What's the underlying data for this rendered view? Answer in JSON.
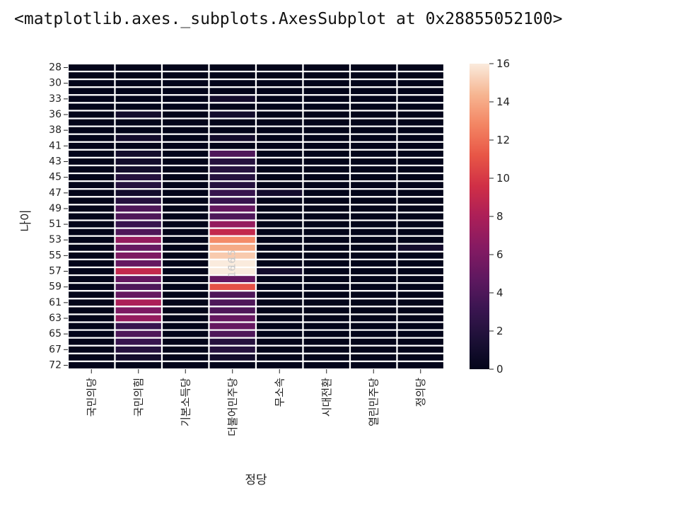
{
  "output_repr": "<matplotlib.axes._subplots.AxesSubplot at 0x28855052100>",
  "chart_data": {
    "type": "heatmap",
    "xlabel": "정당",
    "ylabel": "나이",
    "columns": [
      "국민의당",
      "국민의힘",
      "기본소득당",
      "더불어민주당",
      "무소속",
      "시대전환",
      "열린민주당",
      "정의당"
    ],
    "row_ticks": [
      "28",
      "30",
      "33",
      "36",
      "38",
      "41",
      "43",
      "45",
      "47",
      "49",
      "51",
      "53",
      "55",
      "57",
      "59",
      "61",
      "63",
      "65",
      "67",
      "72"
    ],
    "row_count": 39,
    "values": [
      [
        0,
        0,
        0,
        0,
        0,
        0,
        0,
        0
      ],
      [
        0,
        0,
        0,
        0,
        0,
        0,
        0,
        0
      ],
      [
        0,
        0,
        0,
        0,
        0,
        0,
        0,
        0
      ],
      [
        0,
        0,
        0,
        0,
        0,
        0,
        0,
        0
      ],
      [
        0,
        0,
        0,
        1,
        0,
        0,
        0,
        0
      ],
      [
        0,
        0,
        0,
        0,
        0,
        0,
        0,
        0
      ],
      [
        0,
        1,
        0,
        1,
        0,
        0,
        0,
        0
      ],
      [
        0,
        0,
        0,
        0,
        0,
        0,
        0,
        0
      ],
      [
        0,
        0,
        0,
        0,
        0,
        0,
        0,
        0
      ],
      [
        0,
        1,
        0,
        1,
        0,
        0,
        0,
        0
      ],
      [
        0,
        0,
        0,
        0,
        0,
        0,
        0,
        0
      ],
      [
        0,
        1,
        0,
        4,
        0,
        0,
        0,
        0
      ],
      [
        0,
        1,
        0,
        2,
        0,
        0,
        0,
        0
      ],
      [
        0,
        1,
        0,
        2,
        0,
        0,
        0,
        0
      ],
      [
        0,
        2,
        0,
        2,
        0,
        0,
        0,
        0
      ],
      [
        0,
        2,
        0,
        2,
        0,
        0,
        0,
        0
      ],
      [
        0,
        1,
        0,
        3,
        1,
        0,
        0,
        0
      ],
      [
        0,
        2,
        0,
        3,
        0,
        0,
        0,
        0
      ],
      [
        0,
        4,
        0,
        5,
        0,
        0,
        0,
        0
      ],
      [
        0,
        4,
        0,
        4,
        0,
        0,
        0,
        0
      ],
      [
        0,
        3,
        0,
        7,
        0,
        0,
        0,
        0
      ],
      [
        0,
        4,
        0,
        9,
        0,
        0,
        0,
        0
      ],
      [
        0,
        7,
        0,
        13,
        0,
        0,
        0,
        0
      ],
      [
        0,
        5,
        0,
        14,
        0,
        0,
        0,
        1
      ],
      [
        0,
        6,
        0,
        15,
        0,
        0,
        0,
        0
      ],
      [
        0,
        5,
        0,
        16,
        0,
        0,
        0,
        0
      ],
      [
        0,
        9,
        0,
        16,
        1,
        0,
        0,
        0
      ],
      [
        0,
        5,
        0,
        5,
        0,
        0,
        0,
        0
      ],
      [
        0,
        4,
        0,
        11,
        0,
        0,
        0,
        0
      ],
      [
        0,
        5,
        0,
        4,
        0,
        0,
        0,
        0
      ],
      [
        0,
        8,
        0,
        4,
        0,
        0,
        0,
        0
      ],
      [
        0,
        6,
        0,
        4,
        0,
        0,
        0,
        0
      ],
      [
        0,
        7,
        0,
        5,
        0,
        0,
        0,
        0
      ],
      [
        0,
        3,
        0,
        5,
        0,
        0,
        0,
        0
      ],
      [
        0,
        4,
        0,
        4,
        0,
        0,
        0,
        0
      ],
      [
        0,
        3,
        0,
        2,
        0,
        0,
        0,
        0
      ],
      [
        0,
        2,
        0,
        2,
        0,
        0,
        0,
        0
      ],
      [
        0,
        1,
        0,
        1,
        0,
        0,
        0,
        0
      ],
      [
        0,
        0,
        0,
        0,
        0,
        0,
        0,
        0
      ]
    ],
    "cell_annotations": [
      {
        "row": 24,
        "column": "더불어민주당",
        "text": "15"
      },
      {
        "row": 25,
        "column": "더불어민주당",
        "text": "16"
      },
      {
        "row": 26,
        "column": "더불어민주당",
        "text": "16"
      }
    ],
    "colorbar": {
      "min": 0,
      "max": 16,
      "ticks": [
        0,
        2,
        4,
        6,
        8,
        10,
        12,
        14,
        16
      ]
    },
    "colormap": "rocket",
    "grid": "white lines between rows",
    "colors": {
      "cell_separator": "#ffffff",
      "annotation_text": "#c8c8c8"
    }
  }
}
